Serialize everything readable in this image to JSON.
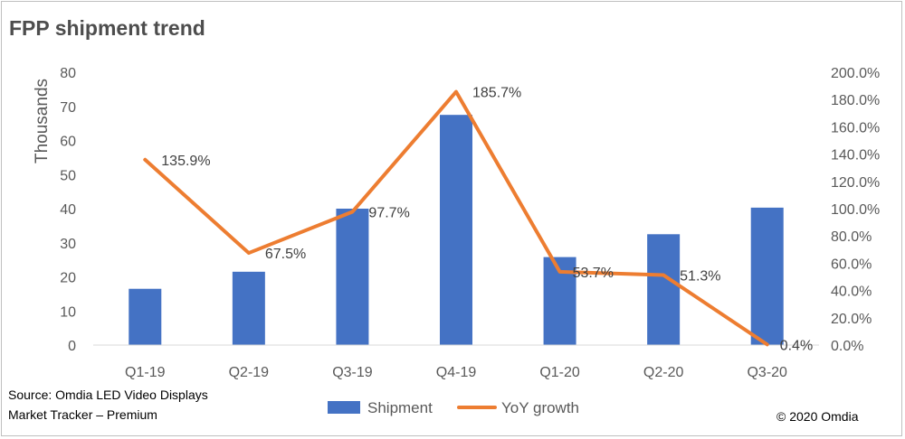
{
  "header": {
    "title": "FPP shipment trend"
  },
  "footer": {
    "source_line1": "Source: Omdia LED Video Displays",
    "source_line2": "Market Tracker – Premium",
    "copyright": "© 2020 Omdia"
  },
  "colors": {
    "bar": "#4472c4",
    "line": "#ed7d31",
    "text": "#595959"
  },
  "chart_data": {
    "type": "bar",
    "title": "FPP shipment trend",
    "categories": [
      "Q1-19",
      "Q2-19",
      "Q3-19",
      "Q4-19",
      "Q1-20",
      "Q2-20",
      "Q3-20"
    ],
    "ylabel": "Thousands",
    "ylim": [
      0,
      80
    ],
    "yticks": [
      "0",
      "10",
      "20",
      "30",
      "40",
      "50",
      "60",
      "70",
      "80"
    ],
    "y2lim": [
      0,
      200
    ],
    "y2ticks": [
      "0.0%",
      "20.0%",
      "40.0%",
      "60.0%",
      "80.0%",
      "100.0%",
      "120.0%",
      "140.0%",
      "160.0%",
      "180.0%",
      "200.0%"
    ],
    "grid": false,
    "legend": "bottom",
    "series": [
      {
        "name": "Shipment",
        "type": "bar",
        "axis": "left",
        "values": [
          16.5,
          21.5,
          40,
          67.5,
          25.8,
          32.5,
          40.3
        ]
      },
      {
        "name": "YoY growth",
        "type": "line",
        "axis": "right",
        "values": [
          135.9,
          67.5,
          97.7,
          185.7,
          53.7,
          51.3,
          0.4
        ],
        "labels": [
          "135.9%",
          "67.5%",
          "97.7%",
          "185.7%",
          "53.7%",
          "51.3%",
          "0.4%"
        ]
      }
    ]
  }
}
